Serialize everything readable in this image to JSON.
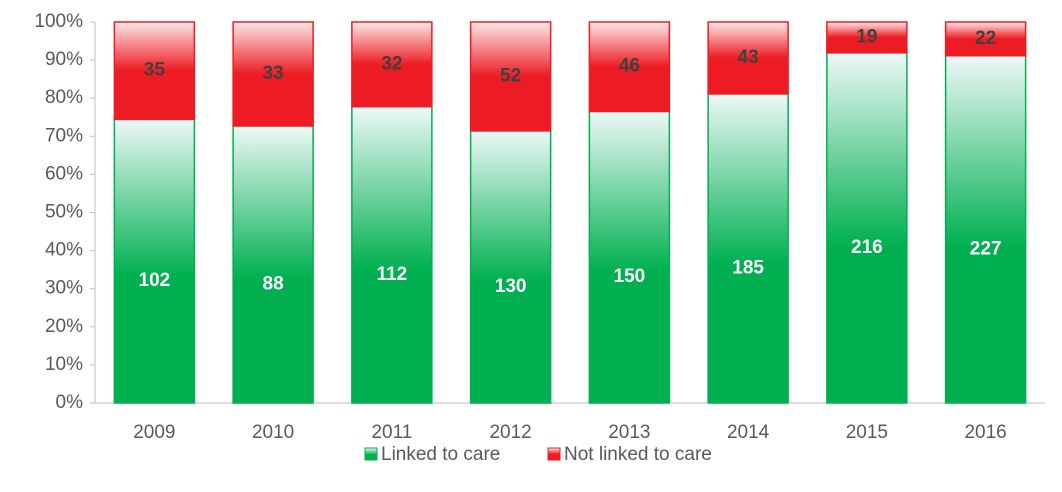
{
  "chart_data": {
    "type": "bar",
    "stacking": "percent",
    "categories": [
      "2009",
      "2010",
      "2011",
      "2012",
      "2013",
      "2014",
      "2015",
      "2016"
    ],
    "series": [
      {
        "name": "Linked to care",
        "color": "#00b050",
        "values": [
          102,
          88,
          112,
          130,
          150,
          185,
          216,
          227
        ]
      },
      {
        "name": "Not linked to care",
        "color": "#ed1c24",
        "values": [
          35,
          33,
          32,
          52,
          46,
          43,
          19,
          22
        ]
      }
    ],
    "ylim": [
      0,
      100
    ],
    "yticks": [
      {
        "value": 0,
        "label": "0%"
      },
      {
        "value": 10,
        "label": "10%"
      },
      {
        "value": 20,
        "label": "20%"
      },
      {
        "value": 30,
        "label": "30%"
      },
      {
        "value": 40,
        "label": "40%"
      },
      {
        "value": 50,
        "label": "50%"
      },
      {
        "value": 60,
        "label": "60%"
      },
      {
        "value": 70,
        "label": "70%"
      },
      {
        "value": 80,
        "label": "80%"
      },
      {
        "value": 90,
        "label": "90%"
      },
      {
        "value": 100,
        "label": "100%"
      }
    ],
    "legend": "bottom"
  }
}
